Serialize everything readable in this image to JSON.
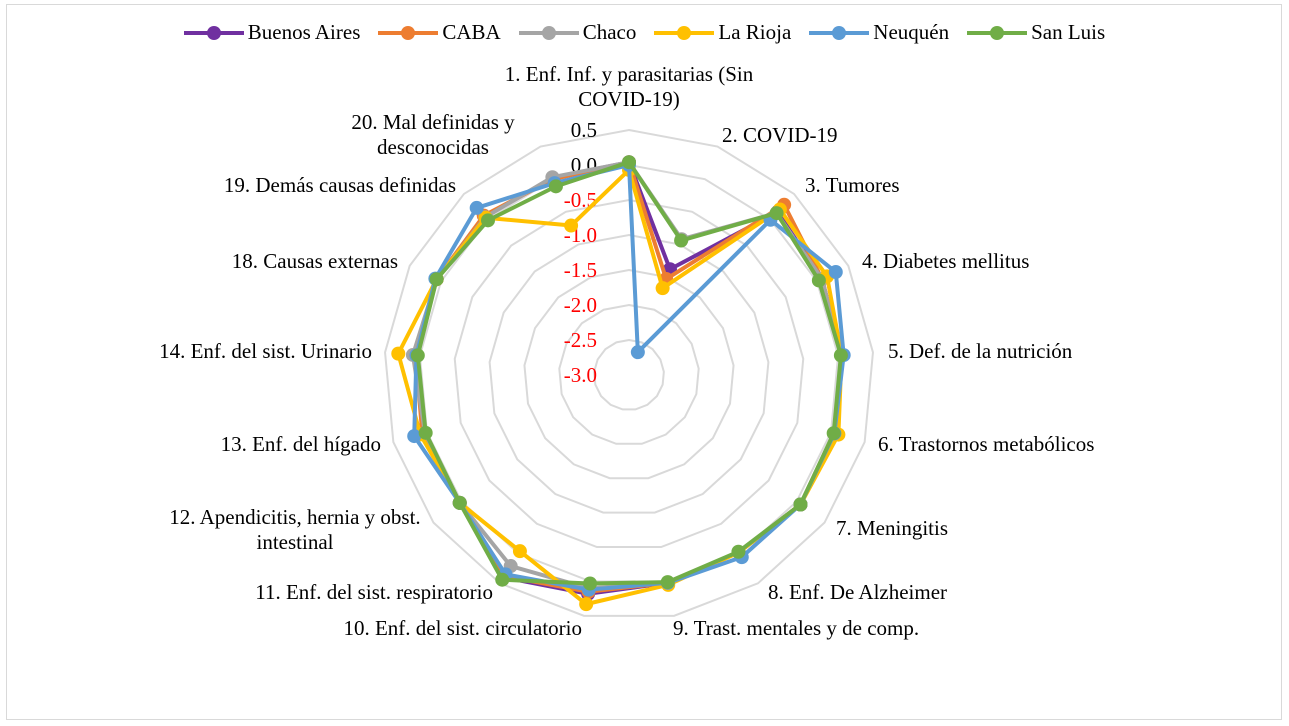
{
  "chart_data": {
    "type": "radar",
    "categories": [
      "1. Enf. Inf. y parasitarias (Sin COVID-19)",
      "2. COVID-19",
      "3. Tumores",
      "4. Diabetes mellitus",
      "5. Def. de la nutrición",
      "6. Trastornos metabólicos",
      "7. Meningitis",
      "8. Enf. De Alzheimer",
      "9. Trast. mentales y de comp.",
      "10. Enf. del sist. circulatorio",
      "11. Enf. del sist. respiratorio",
      "12. Apendicitis, hernia y obst. intestinal",
      "13. Enf. del hígado",
      "14. Enf. del sist. Urinario",
      "18. Causas externas",
      "19. Demás causas definidas",
      "20. Mal definidas y desconocidas"
    ],
    "rlim": [
      -3.0,
      0.5
    ],
    "ticks": [
      "0.5",
      "0.0",
      "-0.5",
      "-1.0",
      "-1.5",
      "-2.0",
      "-2.5",
      "-3.0"
    ],
    "tick_colors": {
      "positive": "#000000",
      "negative": "#FF0000"
    },
    "grid": true,
    "legend": "top",
    "series": [
      {
        "name": "Buenos Aires",
        "color": "#7030A0",
        "values": [
          0.04,
          -1.38,
          0.15,
          0.08,
          0.05,
          0.05,
          0.07,
          -0.02,
          0.02,
          0.18,
          0.4,
          0.03,
          0.04,
          0.06,
          0.07,
          0.06,
          0.02
        ]
      },
      {
        "name": "CABA",
        "color": "#ED7D31",
        "values": [
          0.04,
          -1.53,
          0.29,
          0.08,
          0.05,
          0.05,
          0.07,
          -0.02,
          0.02,
          0.15,
          0.38,
          0.03,
          0.07,
          0.06,
          0.07,
          0.08,
          0.0
        ]
      },
      {
        "name": "Chaco",
        "color": "#A5A5A5",
        "values": [
          0.04,
          -0.92,
          0.13,
          0.08,
          0.05,
          0.05,
          0.07,
          -0.02,
          0.02,
          0.1,
          0.21,
          0.03,
          0.03,
          0.1,
          0.07,
          0.05,
          0.03
        ]
      },
      {
        "name": "La Rioja",
        "color": "#FFC000",
        "values": [
          -0.07,
          -1.67,
          0.2,
          0.16,
          0.05,
          0.11,
          0.07,
          -0.02,
          0.05,
          0.33,
          -0.04,
          0.03,
          0.1,
          0.31,
          0.07,
          0.04,
          -0.71
        ]
      },
      {
        "name": "Neuquén",
        "color": "#5B9BD5",
        "values": [
          0.0,
          -2.65,
          0.0,
          0.3,
          0.08,
          0.05,
          0.07,
          0.06,
          0.02,
          0.12,
          0.35,
          0.03,
          0.19,
          0.05,
          0.09,
          0.23,
          -0.06
        ]
      },
      {
        "name": "San Luis",
        "color": "#70AD47",
        "values": [
          0.04,
          -0.94,
          0.13,
          0.03,
          0.04,
          0.04,
          0.07,
          -0.03,
          0.01,
          0.03,
          0.44,
          0.03,
          0.02,
          0.03,
          0.07,
          -0.01,
          -0.11
        ]
      }
    ]
  }
}
